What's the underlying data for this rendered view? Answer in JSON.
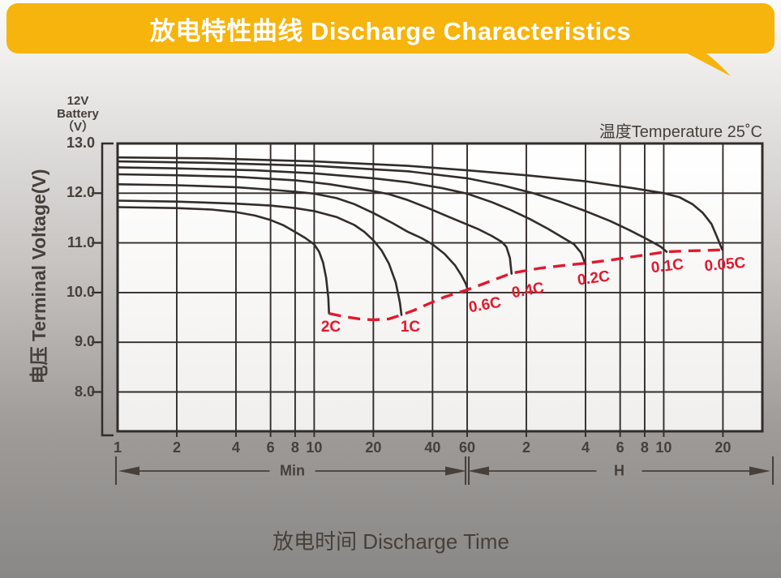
{
  "banner": {
    "title": "放电特性曲线 Discharge Characteristics"
  },
  "battery": {
    "lines": [
      "12V",
      "Battery",
      "（V）"
    ]
  },
  "colors": {
    "banner_yellow": "#f6b40c",
    "cutoff_red": "#e3182c",
    "curve_dark": "#322d2a",
    "text_dark": "#463f3a"
  },
  "chart_data": {
    "type": "line",
    "title": "放电特性曲线 Discharge Characteristics",
    "note": "温度Temperature 25˚C",
    "xlabel": "放电时间 Discharge Time",
    "ylabel": "电压 Terminal Voltage(V)",
    "x_scale": "log-time-minutes",
    "ylim": [
      7.2,
      13.0
    ],
    "y_axis": {
      "ticks": [
        {
          "v": 13,
          "label": "13.0"
        },
        {
          "v": 12,
          "label": "12.0"
        },
        {
          "v": 11,
          "label": "11.0"
        },
        {
          "v": 10,
          "label": "10.0"
        },
        {
          "v": 9,
          "label": "9.0"
        },
        {
          "v": 8,
          "label": "8.0"
        }
      ]
    },
    "x_axis": {
      "ticks": [
        {
          "t": 1,
          "label": "1"
        },
        {
          "t": 2,
          "label": "2"
        },
        {
          "t": 4,
          "label": "4"
        },
        {
          "t": 6,
          "label": "6"
        },
        {
          "t": 8,
          "label": "8"
        },
        {
          "t": 10,
          "label": "10"
        },
        {
          "t": 20,
          "label": "20"
        },
        {
          "t": 40,
          "label": "40"
        },
        {
          "t": 60,
          "label": "60"
        },
        {
          "t": 120,
          "label": "2"
        },
        {
          "t": 240,
          "label": "4"
        },
        {
          "t": 360,
          "label": "6"
        },
        {
          "t": 480,
          "label": "8"
        },
        {
          "t": 600,
          "label": "10"
        },
        {
          "t": 1200,
          "label": "20"
        }
      ],
      "unit_groups": [
        {
          "label": "Min",
          "from": 1,
          "to": 60
        },
        {
          "label": "H",
          "from": 60,
          "to": 2150
        }
      ]
    },
    "series": [
      {
        "name": "2C",
        "points": [
          [
            1,
            11.72
          ],
          [
            2,
            11.7
          ],
          [
            3,
            11.67
          ],
          [
            4,
            11.62
          ],
          [
            5,
            11.55
          ],
          [
            6,
            11.46
          ],
          [
            7,
            11.35
          ],
          [
            8,
            11.22
          ],
          [
            9,
            11.1
          ],
          [
            10,
            10.97
          ],
          [
            10.6,
            10.82
          ],
          [
            11.1,
            10.6
          ],
          [
            11.5,
            10.3
          ],
          [
            11.8,
            9.9
          ],
          [
            11.9,
            9.58
          ]
        ]
      },
      {
        "name": "1C",
        "points": [
          [
            1,
            11.85
          ],
          [
            2,
            11.83
          ],
          [
            4,
            11.79
          ],
          [
            6,
            11.75
          ],
          [
            8,
            11.7
          ],
          [
            10,
            11.64
          ],
          [
            13,
            11.52
          ],
          [
            16,
            11.36
          ],
          [
            18,
            11.22
          ],
          [
            20,
            11.05
          ],
          [
            22,
            10.85
          ],
          [
            24,
            10.58
          ],
          [
            26,
            10.2
          ],
          [
            27.3,
            9.8
          ],
          [
            27.8,
            9.55
          ]
        ]
      },
      {
        "name": "0.6C",
        "points": [
          [
            1,
            12.18
          ],
          [
            2,
            12.16
          ],
          [
            4,
            12.12
          ],
          [
            6,
            12.07
          ],
          [
            8,
            12.03
          ],
          [
            10,
            11.99
          ],
          [
            13,
            11.9
          ],
          [
            16,
            11.78
          ],
          [
            20,
            11.6
          ],
          [
            25,
            11.4
          ],
          [
            30,
            11.22
          ],
          [
            35,
            11.1
          ],
          [
            40,
            10.97
          ],
          [
            46,
            10.78
          ],
          [
            52,
            10.55
          ],
          [
            56,
            10.35
          ],
          [
            59,
            10.18
          ],
          [
            60.5,
            10.05
          ]
        ]
      },
      {
        "name": "0.4C",
        "points": [
          [
            1,
            12.38
          ],
          [
            2,
            12.36
          ],
          [
            4,
            12.33
          ],
          [
            8,
            12.26
          ],
          [
            12,
            12.18
          ],
          [
            16,
            12.1
          ],
          [
            20,
            12.04
          ],
          [
            24,
            11.98
          ],
          [
            30,
            11.86
          ],
          [
            38,
            11.7
          ],
          [
            46,
            11.56
          ],
          [
            56,
            11.42
          ],
          [
            68,
            11.28
          ],
          [
            80,
            11.14
          ],
          [
            90,
            11.02
          ],
          [
            95,
            10.92
          ],
          [
            99,
            10.7
          ],
          [
            101,
            10.38
          ]
        ]
      },
      {
        "name": "0.2C",
        "points": [
          [
            1,
            12.52
          ],
          [
            2,
            12.5
          ],
          [
            5,
            12.46
          ],
          [
            10,
            12.4
          ],
          [
            20,
            12.3
          ],
          [
            30,
            12.22
          ],
          [
            45,
            12.1
          ],
          [
            60,
            11.99
          ],
          [
            80,
            11.82
          ],
          [
            100,
            11.66
          ],
          [
            125,
            11.48
          ],
          [
            155,
            11.28
          ],
          [
            185,
            11.1
          ],
          [
            210,
            10.97
          ],
          [
            228,
            10.8
          ],
          [
            237,
            10.62
          ],
          [
            240,
            10.57
          ]
        ]
      },
      {
        "name": "0.1C",
        "points": [
          [
            1,
            12.64
          ],
          [
            3,
            12.61
          ],
          [
            10,
            12.55
          ],
          [
            30,
            12.44
          ],
          [
            60,
            12.3
          ],
          [
            90,
            12.16
          ],
          [
            130,
            12.0
          ],
          [
            180,
            11.82
          ],
          [
            240,
            11.64
          ],
          [
            320,
            11.44
          ],
          [
            400,
            11.26
          ],
          [
            480,
            11.1
          ],
          [
            540,
            10.99
          ],
          [
            580,
            10.92
          ],
          [
            605,
            10.86
          ],
          [
            620,
            10.82
          ]
        ]
      },
      {
        "name": "0.05C",
        "points": [
          [
            1,
            12.72
          ],
          [
            3,
            12.7
          ],
          [
            10,
            12.64
          ],
          [
            30,
            12.55
          ],
          [
            60,
            12.46
          ],
          [
            120,
            12.36
          ],
          [
            240,
            12.24
          ],
          [
            420,
            12.1
          ],
          [
            600,
            12.0
          ],
          [
            720,
            11.92
          ],
          [
            840,
            11.78
          ],
          [
            950,
            11.6
          ],
          [
            1050,
            11.38
          ],
          [
            1120,
            11.12
          ],
          [
            1160,
            10.97
          ],
          [
            1185,
            10.88
          ],
          [
            1195,
            10.86
          ]
        ]
      }
    ],
    "cutoff_line": {
      "name": "final-discharge-voltage",
      "style": "dashed-red",
      "points": [
        [
          11.9,
          9.58
        ],
        [
          14,
          9.52
        ],
        [
          17,
          9.47
        ],
        [
          20,
          9.45
        ],
        [
          24,
          9.47
        ],
        [
          27.8,
          9.55
        ],
        [
          32,
          9.64
        ],
        [
          38,
          9.77
        ],
        [
          46,
          9.91
        ],
        [
          60.5,
          10.06
        ],
        [
          80,
          10.24
        ],
        [
          101,
          10.39
        ],
        [
          140,
          10.49
        ],
        [
          190,
          10.55
        ],
        [
          240,
          10.59
        ],
        [
          330,
          10.66
        ],
        [
          450,
          10.74
        ],
        [
          620,
          10.82
        ],
        [
          800,
          10.84
        ],
        [
          1000,
          10.85
        ],
        [
          1195,
          10.86
        ]
      ]
    },
    "annotations": [
      {
        "text": "2C",
        "x": 408,
        "y": 405,
        "rot": 0
      },
      {
        "text": "1C",
        "x": 506,
        "y": 405,
        "rot": 0
      },
      {
        "text": "0.6C",
        "x": 598,
        "y": 378,
        "rot": -10
      },
      {
        "text": "0.4C",
        "x": 651,
        "y": 360,
        "rot": -10
      },
      {
        "text": "0.2C",
        "x": 732,
        "y": 345,
        "rot": -8
      },
      {
        "text": "0.1C",
        "x": 823,
        "y": 330,
        "rot": -7
      },
      {
        "text": "0.05C",
        "x": 894,
        "y": 328,
        "rot": -5
      }
    ]
  }
}
